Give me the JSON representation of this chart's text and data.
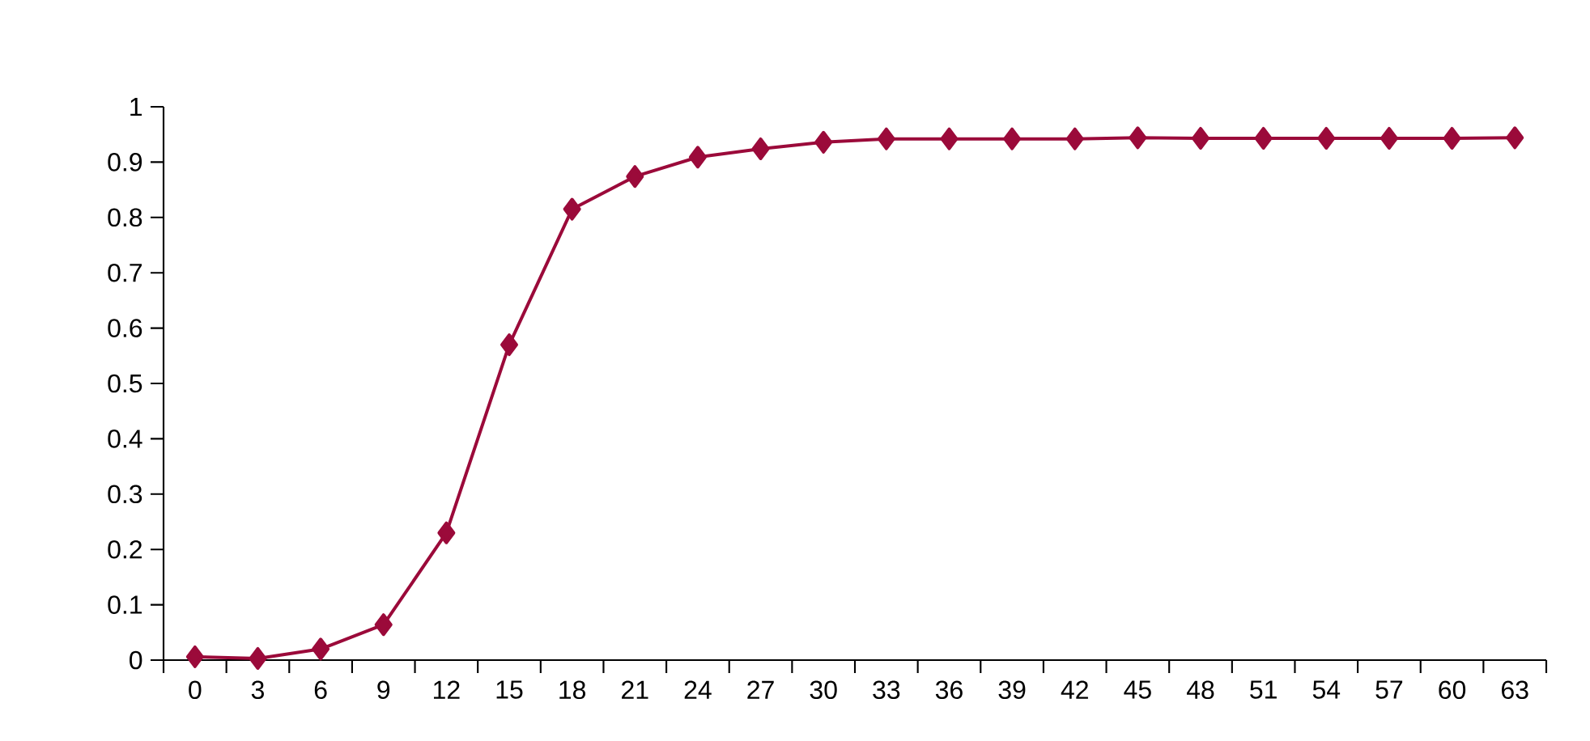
{
  "chart_data": {
    "type": "line",
    "categories": [
      "0",
      "3",
      "6",
      "9",
      "12",
      "15",
      "18",
      "21",
      "24",
      "27",
      "30",
      "33",
      "36",
      "39",
      "42",
      "45",
      "48",
      "51",
      "54",
      "57",
      "60",
      "63"
    ],
    "series": [
      {
        "color": "#9b0a3a",
        "values": [
          0.006,
          0.003,
          0.02,
          0.064,
          0.23,
          0.57,
          0.815,
          0.874,
          0.909,
          0.924,
          0.936,
          0.942,
          0.942,
          0.942,
          0.942,
          0.944,
          0.943,
          0.943,
          0.943,
          0.943,
          0.943,
          0.944
        ]
      }
    ],
    "ylim": [
      0,
      1
    ],
    "yticks": [
      0,
      0.1,
      0.2,
      0.3,
      0.4,
      0.5,
      0.6,
      0.7,
      0.8,
      0.9,
      1
    ],
    "grid": false,
    "legend": false,
    "marker": "diamond",
    "line_style": "solid"
  }
}
